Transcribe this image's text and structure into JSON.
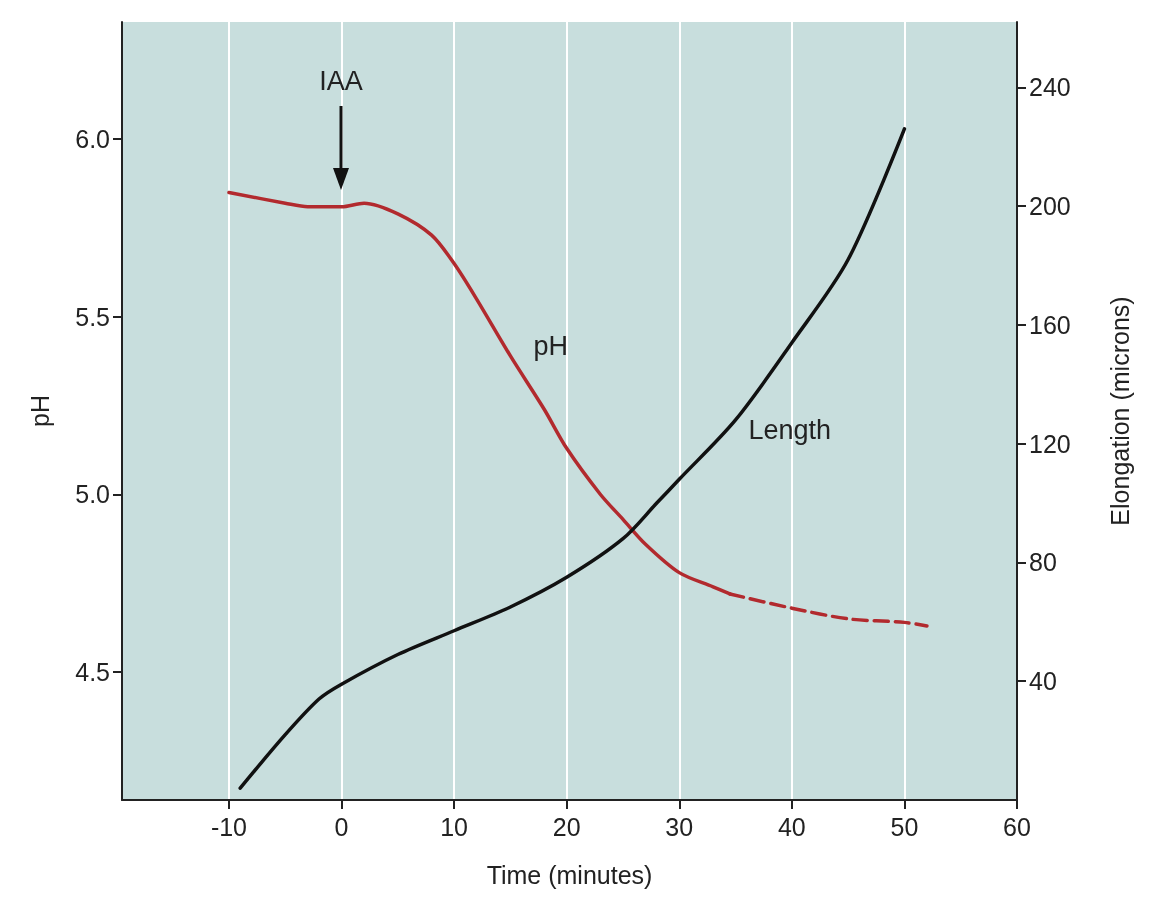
{
  "chart_data": {
    "type": "line",
    "xlabel": "Time (minutes)",
    "ylabel": "pH",
    "y2label": "Elongation (microns)",
    "xlim": [
      -19.5,
      60
    ],
    "xticks": [
      -10,
      0,
      10,
      20,
      30,
      40,
      50,
      60
    ],
    "ylim": [
      4.14,
      6.33
    ],
    "yticks": [
      {
        "value": 4.5,
        "label": "4.5"
      },
      {
        "value": 5,
        "label": "5.0"
      },
      {
        "value": 5.5,
        "label": "5.5"
      },
      {
        "value": 6,
        "label": "6.0"
      }
    ],
    "y2lim": [
      0,
      262
    ],
    "y2ticks": [
      40,
      80,
      120,
      160,
      200,
      240
    ],
    "grid": "x",
    "legend": false,
    "marker": "none",
    "annotations": [
      "IAA"
    ],
    "series": [
      {
        "name": "pH",
        "color": "#b22a2e",
        "line_style": "solid",
        "x": [
          -10,
          -5,
          -3,
          0,
          2,
          5,
          8,
          10,
          12,
          15,
          18,
          20,
          23,
          25,
          27,
          30,
          33,
          34.5
        ],
        "values": [
          5.85,
          5.82,
          5.81,
          5.81,
          5.82,
          5.79,
          5.73,
          5.65,
          5.55,
          5.39,
          5.24,
          5.13,
          5.0,
          4.93,
          4.86,
          4.78,
          4.74,
          4.72
        ]
      },
      {
        "color": "#b22a2e",
        "line_style": "dashed",
        "x": [
          34.5,
          40,
          45,
          50,
          52
        ],
        "values": [
          4.72,
          4.68,
          4.65,
          4.64,
          4.63
        ]
      },
      {
        "name": "Length",
        "color": "#111111",
        "line_style": "solid",
        "axis": "y2",
        "x": [
          -9,
          -5,
          -2,
          0,
          5,
          10,
          15,
          20,
          25,
          28,
          30,
          35,
          40,
          45,
          50
        ],
        "values": [
          4,
          22,
          34,
          39,
          49,
          57,
          65,
          75,
          88,
          100,
          108,
          128,
          154,
          182,
          226
        ]
      }
    ]
  }
}
